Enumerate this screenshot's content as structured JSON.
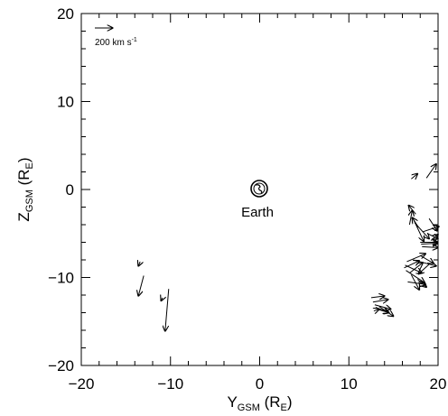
{
  "chart_data": {
    "type": "vector",
    "xlabel": {
      "main": "Y",
      "sub": "GSM",
      "unit": " (R",
      "unit_sub": "E",
      "close": ")"
    },
    "ylabel": {
      "main": "Z",
      "sub": "GSM",
      "unit": " (R",
      "unit_sub": "E",
      "close": ")"
    },
    "xlim": [
      -20,
      20
    ],
    "ylim": [
      -20,
      20
    ],
    "xticks": [
      -20,
      -10,
      0,
      10,
      20
    ],
    "yticks": [
      -20,
      -10,
      0,
      10,
      20
    ],
    "minor_ticks_per_major": 5,
    "legend": {
      "text": "200 km s",
      "superscript": "-1",
      "reference_speed": 200,
      "position": "top-left"
    },
    "annotation": {
      "text": "Earth",
      "x": 0,
      "y": 0
    },
    "vector_scale_re_per_kms": 0.01,
    "vectors": [
      {
        "x": -13.4,
        "y": -8.2,
        "vy": -20,
        "vz": -50
      },
      {
        "x": -13.0,
        "y": -9.8,
        "vy": -60,
        "vz": -230
      },
      {
        "x": -10.9,
        "y": -12.3,
        "vy": -15,
        "vz": -35
      },
      {
        "x": -10.2,
        "y": -11.3,
        "vy": -40,
        "vz": -480
      },
      {
        "x": 16.8,
        "y": -4.0,
        "vy": 30,
        "vz": 160
      },
      {
        "x": 17.0,
        "y": 1.2,
        "vy": 70,
        "vz": 60
      },
      {
        "x": 18.7,
        "y": 1.3,
        "vy": 110,
        "vz": 160
      },
      {
        "x": 17.5,
        "y": -2.8,
        "vy": -80,
        "vz": 100
      },
      {
        "x": 17.2,
        "y": -3.3,
        "vy": 120,
        "vz": -260
      },
      {
        "x": 17.4,
        "y": -3.8,
        "vy": 160,
        "vz": -180
      },
      {
        "x": 17.8,
        "y": -4.3,
        "vy": -70,
        "vz": 110
      },
      {
        "x": 18.3,
        "y": -4.8,
        "vy": 180,
        "vz": 60
      },
      {
        "x": 18.8,
        "y": -5.0,
        "vy": 120,
        "vz": -60
      },
      {
        "x": 19.0,
        "y": -3.3,
        "vy": 90,
        "vz": -140
      },
      {
        "x": 19.2,
        "y": -5.8,
        "vy": 80,
        "vz": 70
      },
      {
        "x": 18.0,
        "y": -6.0,
        "vy": 200,
        "vz": 0
      },
      {
        "x": 18.1,
        "y": -6.2,
        "vy": 190,
        "vz": 10
      },
      {
        "x": 18.2,
        "y": -6.5,
        "vy": 180,
        "vz": -10
      },
      {
        "x": 16.5,
        "y": -8.2,
        "vy": 210,
        "vz": 90
      },
      {
        "x": 16.3,
        "y": -8.6,
        "vy": 190,
        "vz": -90
      },
      {
        "x": 16.2,
        "y": -8.9,
        "vy": 170,
        "vz": 80
      },
      {
        "x": 16.4,
        "y": -9.2,
        "vy": 210,
        "vz": -140
      },
      {
        "x": 16.8,
        "y": -9.5,
        "vy": 150,
        "vz": 120
      },
      {
        "x": 17.0,
        "y": -9.7,
        "vy": 90,
        "vz": -170
      },
      {
        "x": 17.2,
        "y": -8.0,
        "vy": 260,
        "vz": -70
      },
      {
        "x": 18.0,
        "y": -7.5,
        "vy": 150,
        "vz": -90
      },
      {
        "x": 19.0,
        "y": -8.5,
        "vy": -120,
        "vz": -110
      },
      {
        "x": 16.6,
        "y": -10.5,
        "vy": 200,
        "vz": -30
      },
      {
        "x": 17.7,
        "y": -10.2,
        "vy": 100,
        "vz": -90
      },
      {
        "x": 12.5,
        "y": -12.3,
        "vy": 150,
        "vz": 20
      },
      {
        "x": 12.7,
        "y": -12.8,
        "vy": 170,
        "vz": 30
      },
      {
        "x": 12.9,
        "y": -13.1,
        "vy": 180,
        "vz": -50
      },
      {
        "x": 13.0,
        "y": -13.4,
        "vy": 150,
        "vz": -60
      },
      {
        "x": 13.2,
        "y": -13.6,
        "vy": 130,
        "vz": -40
      },
      {
        "x": 13.4,
        "y": -13.3,
        "vy": 160,
        "vz": -110
      },
      {
        "x": 12.8,
        "y": -13.8,
        "vy": 60,
        "vz": 20
      }
    ]
  }
}
